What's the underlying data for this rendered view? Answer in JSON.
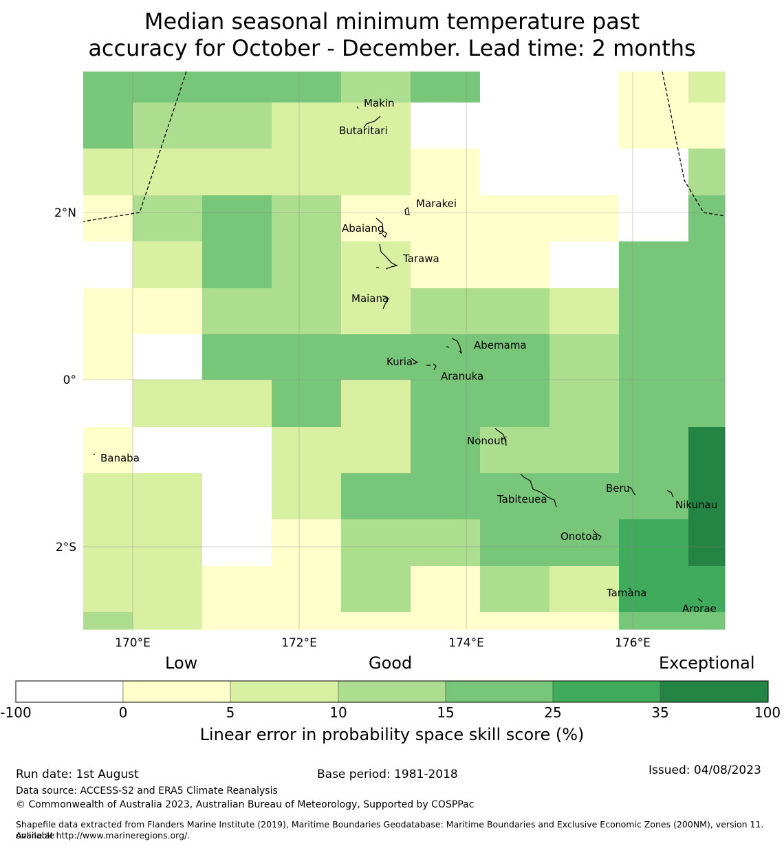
{
  "title": {
    "line1": "Median seasonal minimum temperature past",
    "line2": "accuracy for October - December. Lead time: 2 months"
  },
  "map": {
    "lon_labels": [
      "170°E",
      "172°E",
      "174°E",
      "176°E"
    ],
    "lat_labels": [
      "2°N",
      "0°",
      "2°S"
    ],
    "places": [
      "Makin",
      "Butaritari",
      "Marakei",
      "Abaiang",
      "Tarawa",
      "Maiana",
      "Abemama",
      "Kuria",
      "Aranuka",
      "Nonouti",
      "Banaba",
      "Tabiteuea",
      "Beru",
      "Nikunau",
      "Onotoa",
      "Tamana",
      "Arorae"
    ],
    "skill_grid": [
      [
        15,
        15,
        15,
        15,
        10,
        15,
        -1,
        -1,
        0,
        5
      ],
      [
        15,
        10,
        10,
        5,
        5,
        -1,
        -1,
        -1,
        0,
        0
      ],
      [
        5,
        5,
        5,
        5,
        5,
        0,
        -1,
        -1,
        -1,
        10
      ],
      [
        0,
        10,
        15,
        10,
        0,
        0,
        0,
        0,
        -1,
        15
      ],
      [
        -1,
        5,
        15,
        10,
        5,
        0,
        0,
        -1,
        15,
        15
      ],
      [
        0,
        0,
        10,
        10,
        5,
        10,
        10,
        5,
        15,
        15
      ],
      [
        0,
        -1,
        15,
        15,
        15,
        15,
        15,
        10,
        15,
        15
      ],
      [
        -1,
        5,
        5,
        15,
        5,
        15,
        15,
        10,
        15,
        15
      ],
      [
        0,
        -1,
        -1,
        5,
        5,
        15,
        10,
        10,
        15,
        35
      ],
      [
        5,
        5,
        -1,
        5,
        15,
        15,
        15,
        15,
        15,
        35
      ],
      [
        5,
        5,
        -1,
        0,
        10,
        10,
        15,
        15,
        25,
        35
      ],
      [
        5,
        5,
        0,
        0,
        10,
        0,
        10,
        5,
        25,
        25
      ],
      [
        10,
        5,
        0,
        0,
        0,
        0,
        0,
        0,
        15,
        15
      ]
    ]
  },
  "colorbar": {
    "category_labels": [
      "Low",
      "Good",
      "Exceptional"
    ],
    "ticks": [
      "-100",
      "0",
      "5",
      "10",
      "15",
      "25",
      "35",
      "100"
    ],
    "colors": [
      "#ffffff",
      "#ffffcc",
      "#d9f0a3",
      "#addd8e",
      "#78c679",
      "#41ab5d",
      "#238443"
    ],
    "xlabel": "Linear error in probability space skill score (%)"
  },
  "footer": {
    "run_date": "Run date: 1st August",
    "base_period": "Base period: 1981-2018",
    "issued": "Issued: 04/08/2023",
    "data_source": "Data source: ACCESS-S2 and ERA5 Climate Reanalysis",
    "copyright": "© Commonwealth of Australia 2023, Australian Bureau of Meteorology, Supported by COSPPac",
    "shapefile_line1": "Shapefile data extracted from Flanders Marine Institute (2019), Maritime Boundaries Geodatabase: Maritime Boundaries and Exclusive Economic Zones (200NM), version 11. Available",
    "shapefile_line2": "online at http://www.marineregions.org/."
  }
}
